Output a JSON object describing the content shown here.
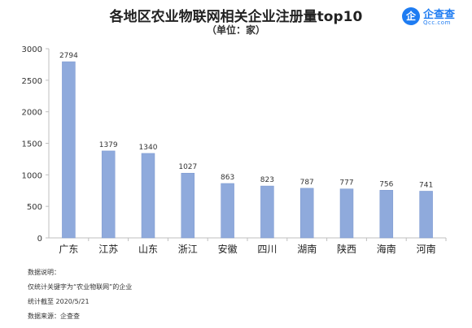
{
  "header": {
    "title": "各地区农业物联网相关企业注册量top10",
    "subtitle": "（单位：家）"
  },
  "logo": {
    "mark": "企",
    "name": "企查查",
    "url": "Qcc.com"
  },
  "notes": {
    "heading": "数据说明：",
    "line1": "仅统计关键字为“农业物联网”的企业",
    "line2": "统计截至 2020/5/21",
    "line3": "数据来源：企查查"
  },
  "colors": {
    "bar": "#8faadc",
    "bar_stroke": "#7a97cf",
    "axis": "#bfbfbf",
    "text": "#333333"
  },
  "chart_data": {
    "type": "bar",
    "categories": [
      "广东",
      "江苏",
      "山东",
      "浙江",
      "安徽",
      "四川",
      "湖南",
      "陕西",
      "海南",
      "河南"
    ],
    "values": [
      2794,
      1379,
      1340,
      1027,
      863,
      823,
      787,
      777,
      756,
      741
    ],
    "ylim": [
      0,
      3000
    ],
    "yticks": [
      0,
      500,
      1000,
      1500,
      2000,
      2500,
      3000
    ],
    "grid": false,
    "legend": "none"
  }
}
